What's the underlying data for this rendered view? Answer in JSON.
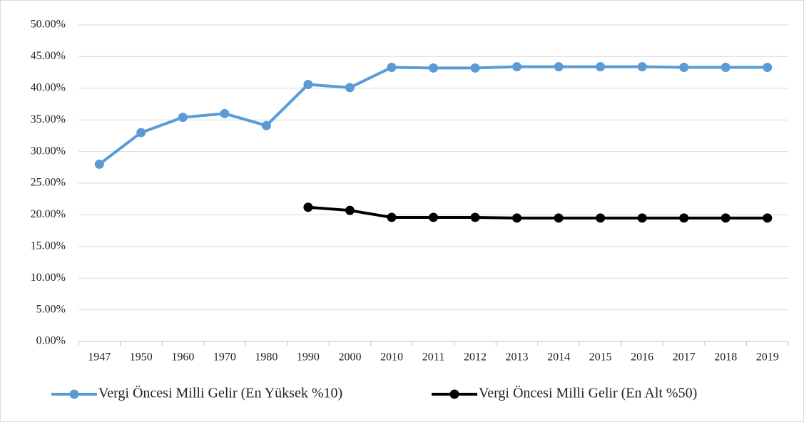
{
  "chart_data": {
    "type": "line",
    "categories": [
      "1947",
      "1950",
      "1960",
      "1970",
      "1980",
      "1990",
      "2000",
      "2010",
      "2011",
      "2012",
      "2013",
      "2014",
      "2015",
      "2016",
      "2017",
      "2018",
      "2019"
    ],
    "series": [
      {
        "name": "Vergi Öncesi Milli Gelir (En Yüksek %10)",
        "color": "#5b9bd5",
        "values": [
          28.0,
          33.0,
          35.4,
          36.0,
          34.1,
          40.6,
          40.1,
          43.3,
          43.2,
          43.2,
          43.4,
          43.4,
          43.4,
          43.4,
          43.3,
          43.3,
          43.3
        ]
      },
      {
        "name": "Vergi Öncesi Milli Gelir (En Alt %50)",
        "color": "#000000",
        "values": [
          null,
          null,
          null,
          null,
          null,
          21.2,
          20.7,
          19.6,
          19.6,
          19.6,
          19.5,
          19.5,
          19.5,
          19.5,
          19.5,
          19.5,
          19.5
        ]
      }
    ],
    "ylim": [
      0,
      50
    ],
    "yticks": [
      {
        "value": 0,
        "label": "0.00%"
      },
      {
        "value": 5,
        "label": "5.00%"
      },
      {
        "value": 10,
        "label": "10.00%"
      },
      {
        "value": 15,
        "label": "15.00%"
      },
      {
        "value": 20,
        "label": "20.00%"
      },
      {
        "value": 25,
        "label": "25.00%"
      },
      {
        "value": 30,
        "label": "30.00%"
      },
      {
        "value": 35,
        "label": "35.00%"
      },
      {
        "value": 40,
        "label": "40.00%"
      },
      {
        "value": 45,
        "label": "45.00%"
      },
      {
        "value": 50,
        "label": "50.00%"
      }
    ],
    "grid": true,
    "legend": "bottom"
  }
}
